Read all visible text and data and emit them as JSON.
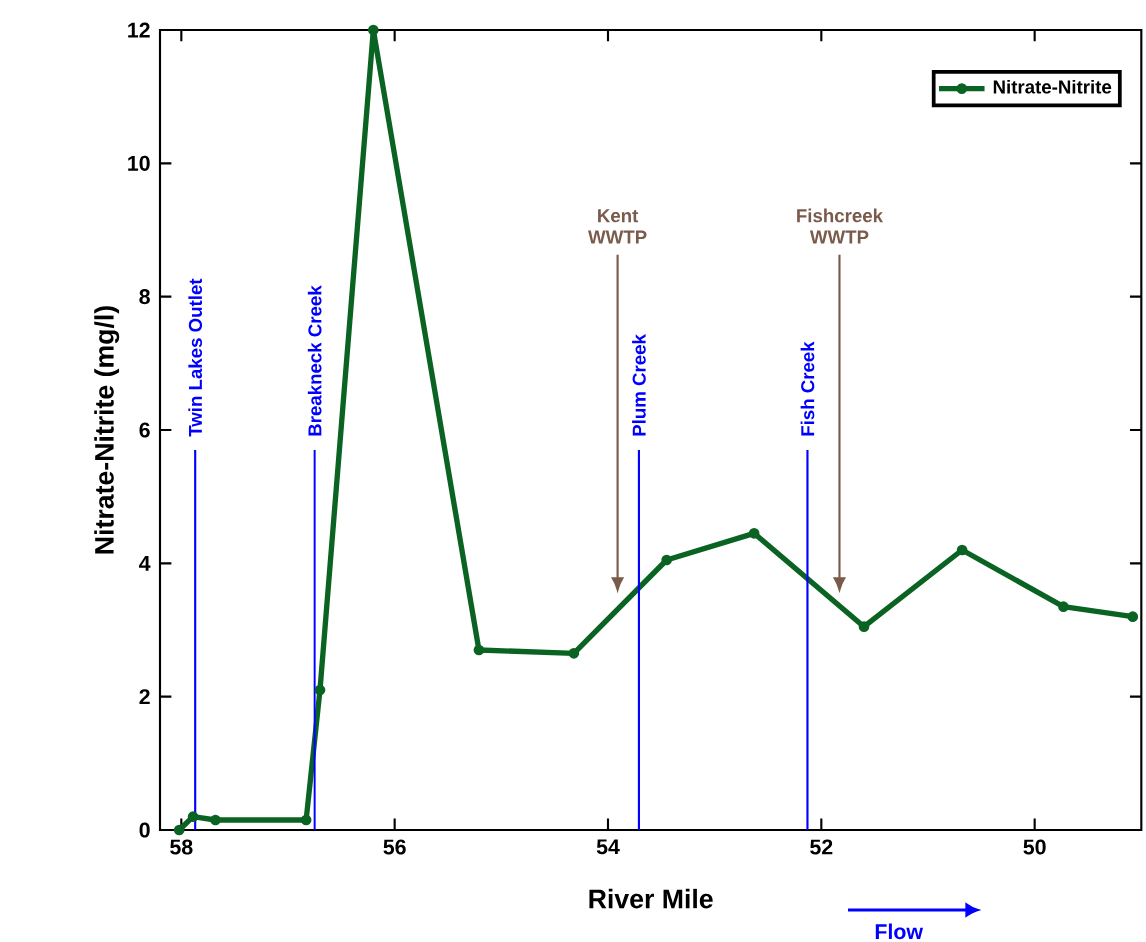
{
  "chart_data": {
    "type": "line",
    "xlabel": "River Mile",
    "ylabel": "Nitrate-Nitrite (mg/l)",
    "series": [
      {
        "name": "Nitrate-Nitrite",
        "color": "#0b6323",
        "x": [
          58.02,
          57.89,
          57.68,
          56.83,
          56.7,
          56.2,
          55.21,
          54.32,
          53.45,
          52.63,
          51.6,
          50.68,
          49.73,
          49.08
        ],
        "values": [
          0.0,
          0.2,
          0.15,
          0.15,
          2.1,
          12,
          2.7,
          2.65,
          4.05,
          4.45,
          3.05,
          4.2,
          3.35,
          3.2
        ]
      }
    ],
    "xlim": [
      58.2,
      49
    ],
    "ylim": [
      0,
      12
    ],
    "xticks": [
      58,
      56,
      54,
      52,
      50
    ],
    "yticks": [
      0,
      2,
      4,
      6,
      8,
      10,
      12
    ],
    "ref_lines": [
      {
        "axis": "x",
        "value": 57.87,
        "label": "Twin Lakes Outlet",
        "color": "#0000ff"
      },
      {
        "axis": "x",
        "value": 56.75,
        "label": "Breakneck Creek",
        "color": "#0000ff"
      },
      {
        "axis": "x",
        "value": 53.71,
        "label": "Plum Creek",
        "color": "#0000ff"
      },
      {
        "axis": "x",
        "value": 52.13,
        "label": "Fish Creek",
        "color": "#0000ff"
      }
    ],
    "annotations": [
      {
        "text": "Kent WWTP",
        "x": 53.91,
        "y": 3.55
      },
      {
        "text": "Fishcreek WWTP",
        "x": 51.83,
        "y": 3.55
      },
      "Flow"
    ],
    "legend": "top right",
    "marker": "circle",
    "line_style": "solid",
    "grid": false
  }
}
